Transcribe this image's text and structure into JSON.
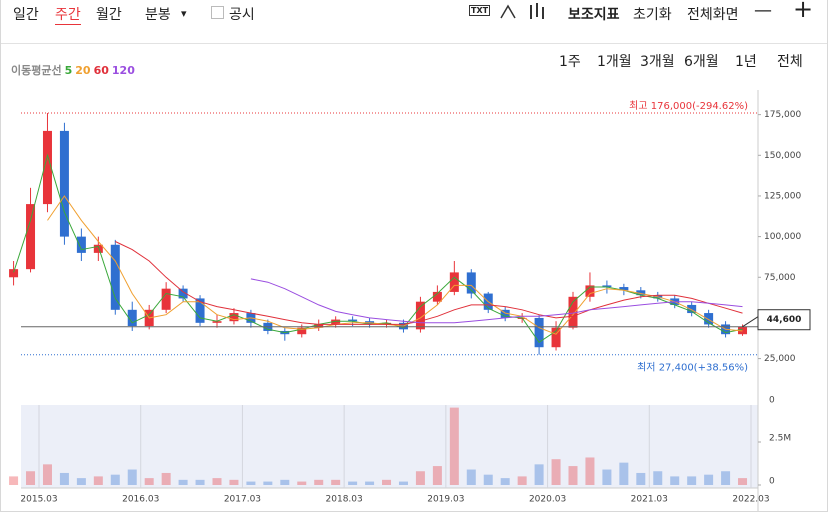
{
  "toolbar": {
    "tabs": [
      "일간",
      "주간",
      "월간",
      "분봉"
    ],
    "dropdown": "▾",
    "checkbox_label": "공시",
    "icon_text": "TXT",
    "buttons": [
      "보조지표",
      "초기화",
      "전체화면",
      "—",
      "+"
    ]
  },
  "period_buttons": [
    "1주",
    "1개월",
    "3개월",
    "6개월",
    "1년",
    "전체"
  ],
  "ma_legend_label": "이동평균선",
  "chart_data": {
    "type": "candlestick",
    "x": [
      "2014.12",
      "2015.02",
      "2015.04",
      "2015.06",
      "2015.08",
      "2015.10",
      "2015.12",
      "2016.02",
      "2016.04",
      "2016.06",
      "2016.08",
      "2016.10",
      "2016.12",
      "2017.02",
      "2017.04",
      "2017.06",
      "2017.08",
      "2017.10",
      "2017.12",
      "2018.02",
      "2018.04",
      "2018.06",
      "2018.08",
      "2018.10",
      "2018.12",
      "2019.02",
      "2019.04",
      "2019.06",
      "2019.08",
      "2019.10",
      "2019.12",
      "2020.02",
      "2020.04",
      "2020.06",
      "2020.08",
      "2020.10",
      "2020.12",
      "2021.02",
      "2021.04",
      "2021.06",
      "2021.08",
      "2021.10",
      "2021.12",
      "2022.02"
    ],
    "open": [
      75000,
      80000,
      120000,
      165000,
      100000,
      90000,
      95000,
      55000,
      45000,
      55000,
      68000,
      62000,
      47000,
      48000,
      53000,
      47000,
      42000,
      40000,
      44000,
      46000,
      49000,
      48000,
      46000,
      47000,
      43000,
      60000,
      66000,
      78000,
      65000,
      55000,
      50000,
      50000,
      32000,
      44000,
      63000,
      70000,
      69000,
      67000,
      64000,
      62000,
      58000,
      53000,
      46000,
      40000
    ],
    "high": [
      85000,
      130000,
      176000,
      170000,
      105000,
      100000,
      98000,
      60000,
      58000,
      72000,
      70000,
      64000,
      52000,
      56000,
      55000,
      49000,
      44000,
      46000,
      49000,
      51000,
      51000,
      50000,
      49000,
      49000,
      63000,
      70000,
      85000,
      80000,
      66000,
      57000,
      53000,
      52000,
      48000,
      66000,
      78000,
      73000,
      71000,
      69000,
      66000,
      64000,
      60000,
      55000,
      48000,
      46000
    ],
    "low": [
      70000,
      78000,
      115000,
      95000,
      85000,
      85000,
      52000,
      42000,
      43000,
      53000,
      60000,
      45000,
      44000,
      46000,
      44000,
      40000,
      36000,
      38000,
      42000,
      44000,
      45000,
      44000,
      44000,
      41000,
      41000,
      58000,
      64000,
      62000,
      53000,
      48000,
      47000,
      27400,
      30000,
      43000,
      60000,
      65000,
      64000,
      62000,
      60000,
      56000,
      51000,
      44000,
      38000,
      39000
    ],
    "close": [
      80000,
      120000,
      165000,
      100000,
      90000,
      95000,
      55000,
      45000,
      55000,
      68000,
      62000,
      47000,
      48000,
      53000,
      47000,
      42000,
      40000,
      44000,
      46000,
      49000,
      48000,
      46000,
      47000,
      43000,
      60000,
      66000,
      78000,
      65000,
      55000,
      50000,
      50000,
      32000,
      44000,
      63000,
      70000,
      69000,
      67000,
      64000,
      62000,
      58000,
      53000,
      46000,
      40000,
      44600
    ],
    "volume": [
      500000,
      800000,
      1200000,
      700000,
      400000,
      500000,
      600000,
      900000,
      400000,
      700000,
      300000,
      300000,
      400000,
      300000,
      200000,
      200000,
      300000,
      200000,
      300000,
      300000,
      200000,
      200000,
      300000,
      200000,
      800000,
      1100000,
      4500000,
      900000,
      600000,
      400000,
      500000,
      1200000,
      1500000,
      1100000,
      1600000,
      900000,
      1300000,
      700000,
      800000,
      500000,
      500000,
      600000,
      800000,
      400000
    ],
    "up_color": "#e8343a",
    "down_color": "#2f6fd0",
    "series": [
      {
        "name": "5",
        "color": "#3aa83a",
        "values": [
          78000,
          110000,
          150000,
          115000,
          92000,
          94000,
          62000,
          47000,
          52000,
          65000,
          63000,
          50000,
          48000,
          52000,
          48000,
          43000,
          41000,
          43000,
          46000,
          48000,
          48000,
          46000,
          47000,
          44000,
          57000,
          65000,
          75000,
          67000,
          56000,
          51000,
          50000,
          35000,
          42000,
          60000,
          69000,
          69000,
          67000,
          64000,
          62000,
          58000,
          54000,
          47000,
          41000,
          43000
        ]
      },
      {
        "name": "20",
        "color": "#f0a030",
        "values": [
          null,
          null,
          110000,
          125000,
          110000,
          97000,
          85000,
          65000,
          50000,
          52000,
          60000,
          60000,
          52000,
          49000,
          50000,
          48000,
          44000,
          43000,
          44000,
          46000,
          47000,
          47000,
          46000,
          45000,
          50000,
          58000,
          70000,
          70000,
          60000,
          53000,
          51000,
          44000,
          40000,
          52000,
          65000,
          68000,
          67000,
          65000,
          63000,
          60000,
          55000,
          49000,
          43000,
          42000
        ]
      },
      {
        "name": "60",
        "color": "#e0303a",
        "values": [
          null,
          null,
          null,
          null,
          null,
          null,
          97000,
          92000,
          85000,
          75000,
          66000,
          60000,
          57000,
          55000,
          53000,
          51000,
          49000,
          47000,
          46000,
          46000,
          46000,
          46000,
          46000,
          46000,
          48000,
          51000,
          55000,
          58000,
          58000,
          57000,
          55000,
          52000,
          50000,
          51000,
          55000,
          58000,
          61000,
          63000,
          64000,
          64000,
          62000,
          59000,
          56000,
          53000
        ]
      },
      {
        "name": "120",
        "color": "#9a4ee0",
        "values": [
          null,
          null,
          null,
          null,
          null,
          null,
          null,
          null,
          null,
          null,
          null,
          null,
          null,
          null,
          74000,
          72000,
          68000,
          63000,
          58000,
          54000,
          52000,
          50000,
          49000,
          48000,
          47000,
          47000,
          47000,
          48000,
          49000,
          50000,
          51000,
          51000,
          52000,
          53000,
          55000,
          56000,
          57000,
          58000,
          59000,
          60000,
          60000,
          59000,
          58000,
          57000
        ]
      }
    ],
    "ylim": [
      10000,
      184000
    ],
    "yticks": [
      {
        "value": 25000,
        "label": "25,000"
      },
      {
        "value": 75000,
        "label": "75,000"
      },
      {
        "value": 100000,
        "label": "100,000"
      },
      {
        "value": 125000,
        "label": "125,000"
      },
      {
        "value": 150000,
        "label": "150,000"
      },
      {
        "value": 175000,
        "label": "175,000"
      }
    ],
    "xticks": [
      "2015.03",
      "2016.03",
      "2017.03",
      "2018.03",
      "2019.03",
      "2020.03",
      "2021.03",
      "2022.03"
    ],
    "volume_ylim": [
      0,
      5000000
    ],
    "volume_yticks": [
      {
        "value": 0,
        "label": "0"
      },
      {
        "value": 2500000,
        "label": "2.5M"
      }
    ],
    "volume_top_label": "0",
    "max_line": {
      "value": 176000,
      "label": "최고 176,000(-294.62%)"
    },
    "min_line": {
      "value": 27400,
      "label": "최저 27,400(+38.56%)"
    },
    "current_price": {
      "value": 44600,
      "label": "44,600"
    }
  }
}
